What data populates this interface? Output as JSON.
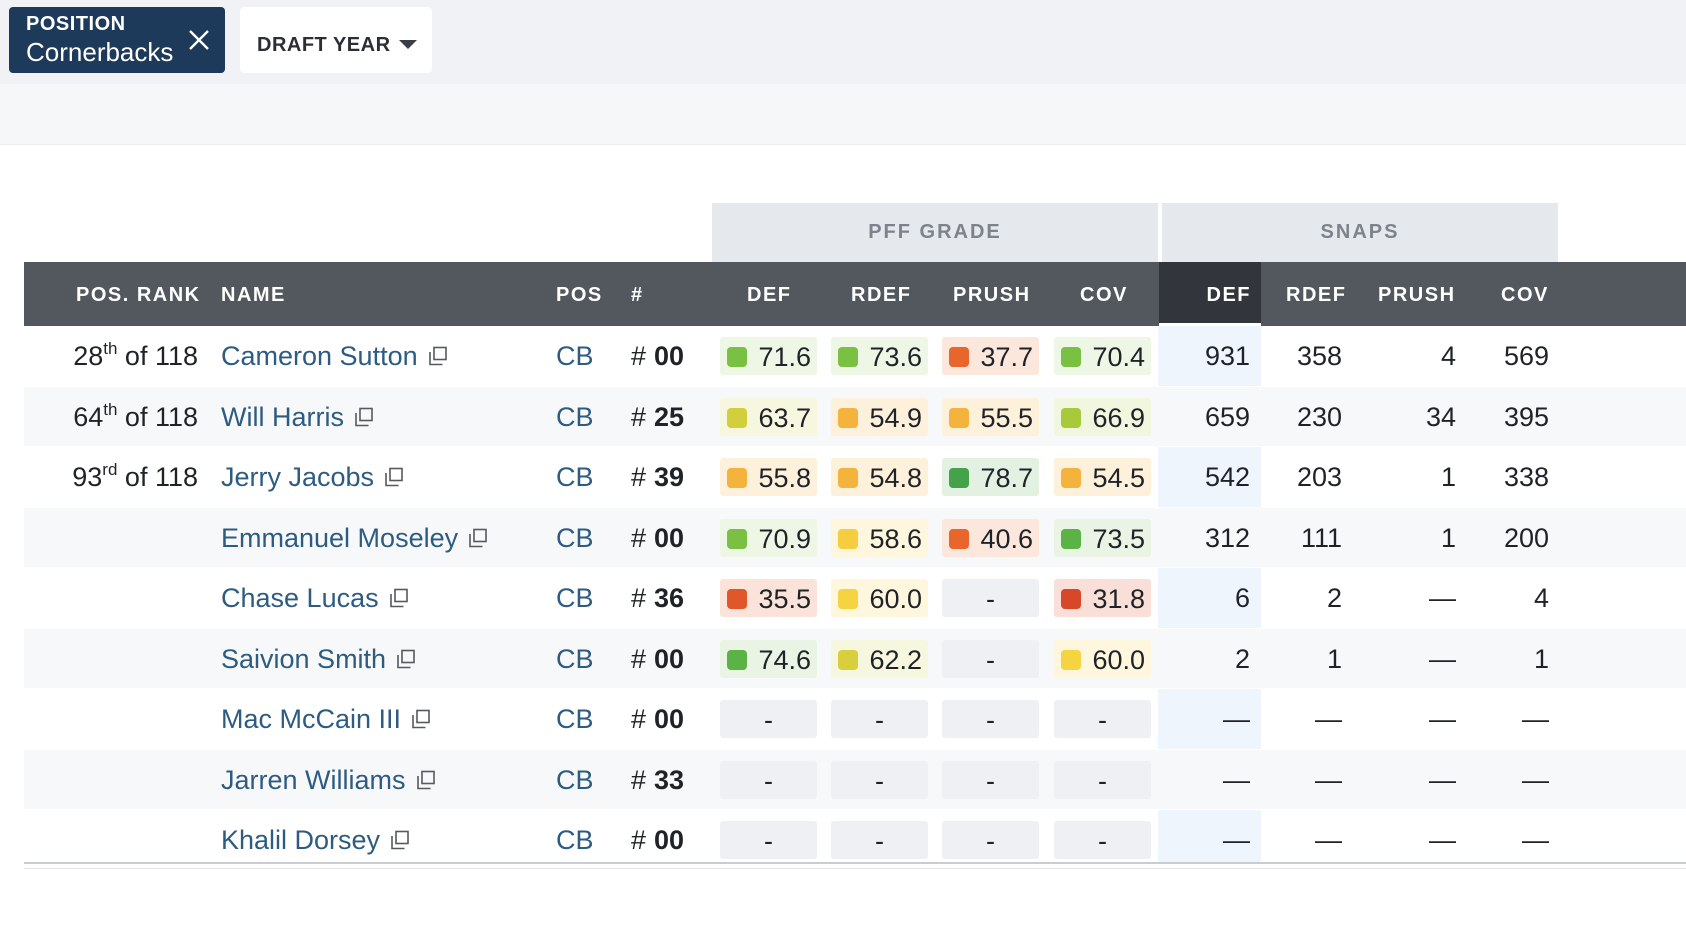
{
  "filters": {
    "position": {
      "label": "POSITION",
      "value": "Cornerbacks"
    },
    "draft_year": {
      "label": "DRAFT YEAR"
    }
  },
  "table": {
    "groups": {
      "pff_grade": "PFF GRADE",
      "snaps": "SNAPS"
    },
    "columns": {
      "rank": "POS. RANK",
      "name": "NAME",
      "pos": "POS",
      "jersey": "#",
      "grade_def": "DEF",
      "grade_rdef": "RDEF",
      "grade_prush": "PRUSH",
      "grade_cov": "COV",
      "snap_def": "DEF",
      "snap_rdef": "RDEF",
      "snap_prush": "PRUSH",
      "snap_cov": "COV"
    },
    "rows": [
      {
        "rank_num": "28",
        "rank_suffix": "th",
        "rank_rest": " of 118",
        "name": "Cameron Sutton",
        "pos": "CB",
        "jersey_hash": "#",
        "jersey": "00",
        "grades": [
          {
            "v": "71.6",
            "color": "#7ac143"
          },
          {
            "v": "73.6",
            "color": "#7ac143"
          },
          {
            "v": "37.7",
            "color": "#e8662c"
          },
          {
            "v": "70.4",
            "color": "#7ac143"
          }
        ],
        "snaps": [
          "931",
          "358",
          "4",
          "569"
        ]
      },
      {
        "rank_num": "64",
        "rank_suffix": "th",
        "rank_rest": " of 118",
        "name": "Will Harris",
        "pos": "CB",
        "jersey_hash": "#",
        "jersey": "25",
        "grades": [
          {
            "v": "63.7",
            "color": "#d2cf3a"
          },
          {
            "v": "54.9",
            "color": "#f3b33c"
          },
          {
            "v": "55.5",
            "color": "#f3b33c"
          },
          {
            "v": "66.9",
            "color": "#a7c93a"
          }
        ],
        "snaps": [
          "659",
          "230",
          "34",
          "395"
        ]
      },
      {
        "rank_num": "93",
        "rank_suffix": "rd",
        "rank_rest": " of 118",
        "name": "Jerry Jacobs",
        "pos": "CB",
        "jersey_hash": "#",
        "jersey": "39",
        "grades": [
          {
            "v": "55.8",
            "color": "#f3b33c"
          },
          {
            "v": "54.8",
            "color": "#f3b33c"
          },
          {
            "v": "78.7",
            "color": "#44a24a"
          },
          {
            "v": "54.5",
            "color": "#f3b33c"
          }
        ],
        "snaps": [
          "542",
          "203",
          "1",
          "338"
        ]
      },
      {
        "rank_num": "",
        "rank_suffix": "",
        "rank_rest": "",
        "name": "Emmanuel Moseley",
        "pos": "CB",
        "jersey_hash": "#",
        "jersey": "00",
        "grades": [
          {
            "v": "70.9",
            "color": "#7ac143"
          },
          {
            "v": "58.6",
            "color": "#f6cd3f"
          },
          {
            "v": "40.6",
            "color": "#e8662c"
          },
          {
            "v": "73.5",
            "color": "#5cb345"
          }
        ],
        "snaps": [
          "312",
          "111",
          "1",
          "200"
        ]
      },
      {
        "rank_num": "",
        "rank_suffix": "",
        "rank_rest": "",
        "name": "Chase Lucas",
        "pos": "CB",
        "jersey_hash": "#",
        "jersey": "36",
        "grades": [
          {
            "v": "35.5",
            "color": "#e0582a"
          },
          {
            "v": "60.0",
            "color": "#f6d340"
          },
          {
            "v": "-",
            "color": ""
          },
          {
            "v": "31.8",
            "color": "#d9472b"
          }
        ],
        "snaps": [
          "6",
          "2",
          "—",
          "4"
        ]
      },
      {
        "rank_num": "",
        "rank_suffix": "",
        "rank_rest": "",
        "name": "Saivion Smith",
        "pos": "CB",
        "jersey_hash": "#",
        "jersey": "00",
        "grades": [
          {
            "v": "74.6",
            "color": "#5cb345"
          },
          {
            "v": "62.2",
            "color": "#d8cf3c"
          },
          {
            "v": "-",
            "color": ""
          },
          {
            "v": "60.0",
            "color": "#f6d340"
          }
        ],
        "snaps": [
          "2",
          "1",
          "—",
          "1"
        ]
      },
      {
        "rank_num": "",
        "rank_suffix": "",
        "rank_rest": "",
        "name": "Mac McCain III",
        "pos": "CB",
        "jersey_hash": "#",
        "jersey": "00",
        "grades": [
          {
            "v": "-",
            "color": ""
          },
          {
            "v": "-",
            "color": ""
          },
          {
            "v": "-",
            "color": ""
          },
          {
            "v": "-",
            "color": ""
          }
        ],
        "snaps": [
          "—",
          "—",
          "—",
          "—"
        ]
      },
      {
        "rank_num": "",
        "rank_suffix": "",
        "rank_rest": "",
        "name": "Jarren Williams",
        "pos": "CB",
        "jersey_hash": "#",
        "jersey": "33",
        "grades": [
          {
            "v": "-",
            "color": ""
          },
          {
            "v": "-",
            "color": ""
          },
          {
            "v": "-",
            "color": ""
          },
          {
            "v": "-",
            "color": ""
          }
        ],
        "snaps": [
          "—",
          "—",
          "—",
          "—"
        ]
      },
      {
        "rank_num": "",
        "rank_suffix": "",
        "rank_rest": "",
        "name": "Khalil Dorsey",
        "pos": "CB",
        "jersey_hash": "#",
        "jersey": "00",
        "grades": [
          {
            "v": "-",
            "color": ""
          },
          {
            "v": "-",
            "color": ""
          },
          {
            "v": "-",
            "color": ""
          },
          {
            "v": "-",
            "color": ""
          }
        ],
        "snaps": [
          "—",
          "—",
          "—",
          "—"
        ]
      }
    ]
  },
  "colors": {
    "chip_bg": "#1d3a5a",
    "header_bg": "#53585f",
    "link": "#2d5b82",
    "active_sort_bg": "#32363c"
  },
  "icons": {
    "close": "close-icon",
    "dropdown": "caret-down-icon",
    "external": "external-link-icon"
  }
}
